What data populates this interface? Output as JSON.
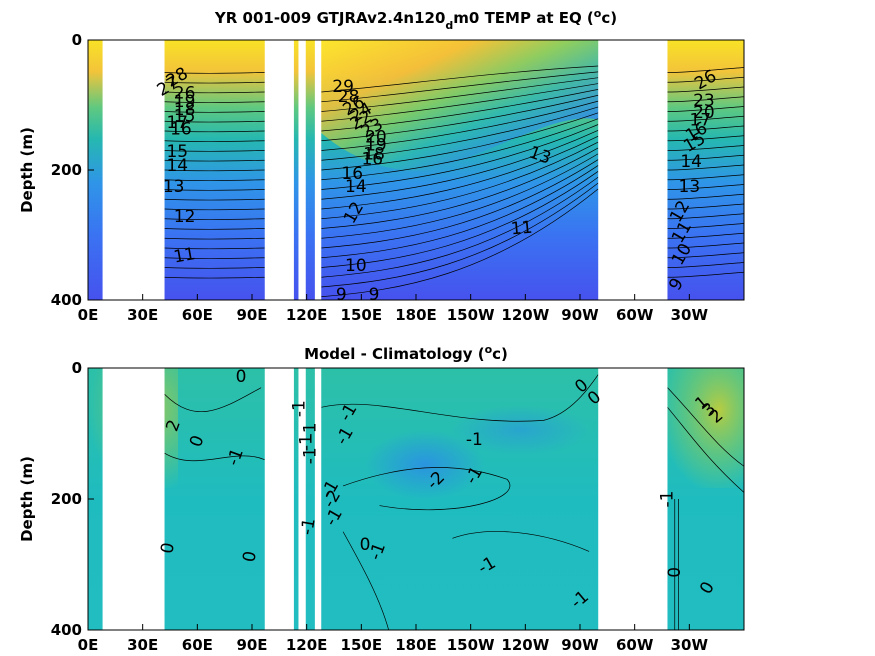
{
  "chart_data": [
    {
      "type": "heatmap",
      "panel": "top",
      "title": "YR 001-009 GTJRAv2.4n120",
      "title_sub": "d",
      "title_tail": "m0 TEMP at EQ (",
      "title_sup": "o",
      "title_end": "c)",
      "ylabel": "Depth (m)",
      "x_ticks": [
        "0E",
        "30E",
        "60E",
        "90E",
        "120E",
        "150E",
        "180E",
        "150W",
        "120W",
        "90W",
        "60W",
        "30W"
      ],
      "x_tick_lon": [
        0,
        30,
        60,
        90,
        120,
        150,
        180,
        210,
        240,
        270,
        300,
        330
      ],
      "y_ticks": [
        "0",
        "200",
        "400"
      ],
      "y_tick_val": [
        0,
        200,
        400
      ],
      "xlim_lon": [
        0,
        360
      ],
      "ylim_depth": [
        0,
        400
      ],
      "land_masks_lon": [
        [
          8,
          42
        ],
        [
          97,
          113
        ],
        [
          115.5,
          119.5
        ],
        [
          124.5,
          128
        ],
        [
          280,
          318
        ]
      ],
      "contour_labels": [
        {
          "text": "28",
          "lon": 49,
          "depth": 58,
          "rot": -30
        },
        {
          "text": "27",
          "lon": 44,
          "depth": 72,
          "rot": -30
        },
        {
          "text": "26",
          "lon": 53,
          "depth": 82,
          "rot": 0
        },
        {
          "text": "19",
          "lon": 53,
          "depth": 95,
          "rot": 0
        },
        {
          "text": "18",
          "lon": 53,
          "depth": 108,
          "rot": 0
        },
        {
          "text": "15",
          "lon": 53,
          "depth": 118,
          "rot": 0
        },
        {
          "text": "17",
          "lon": 49,
          "depth": 128,
          "rot": 0
        },
        {
          "text": "16",
          "lon": 51,
          "depth": 138,
          "rot": 0
        },
        {
          "text": "15",
          "lon": 49,
          "depth": 172,
          "rot": 0
        },
        {
          "text": "14",
          "lon": 49,
          "depth": 194,
          "rot": 0
        },
        {
          "text": "13",
          "lon": 47,
          "depth": 226,
          "rot": 0
        },
        {
          "text": "12",
          "lon": 53,
          "depth": 272,
          "rot": 0
        },
        {
          "text": "11",
          "lon": 53,
          "depth": 332,
          "rot": -10
        },
        {
          "text": "29",
          "lon": 140,
          "depth": 72,
          "rot": 0
        },
        {
          "text": "28",
          "lon": 143,
          "depth": 88,
          "rot": 0
        },
        {
          "text": "26",
          "lon": 146,
          "depth": 102,
          "rot": -30
        },
        {
          "text": "24",
          "lon": 150,
          "depth": 112,
          "rot": -30
        },
        {
          "text": "22",
          "lon": 150,
          "depth": 124,
          "rot": -30
        },
        {
          "text": "23",
          "lon": 156,
          "depth": 136,
          "rot": -30
        },
        {
          "text": "20",
          "lon": 158,
          "depth": 150,
          "rot": 0
        },
        {
          "text": "19",
          "lon": 158,
          "depth": 162,
          "rot": 0
        },
        {
          "text": "18",
          "lon": 157,
          "depth": 176,
          "rot": 0
        },
        {
          "text": "16",
          "lon": 156,
          "depth": 184,
          "rot": 0
        },
        {
          "text": "16",
          "lon": 145,
          "depth": 206,
          "rot": 0
        },
        {
          "text": "14",
          "lon": 147,
          "depth": 226,
          "rot": 0
        },
        {
          "text": "12",
          "lon": 146,
          "depth": 266,
          "rot": -60
        },
        {
          "text": "13",
          "lon": 248,
          "depth": 178,
          "rot": 20
        },
        {
          "text": "11",
          "lon": 238,
          "depth": 290,
          "rot": -5
        },
        {
          "text": "10",
          "lon": 147,
          "depth": 348,
          "rot": 0
        },
        {
          "text": "9",
          "lon": 139,
          "depth": 392,
          "rot": 0
        },
        {
          "text": "9",
          "lon": 157,
          "depth": 392,
          "rot": 0
        },
        {
          "text": "26",
          "lon": 339,
          "depth": 62,
          "rot": -30
        },
        {
          "text": "23",
          "lon": 338,
          "depth": 94,
          "rot": 0
        },
        {
          "text": "20",
          "lon": 338,
          "depth": 112,
          "rot": 0
        },
        {
          "text": "17",
          "lon": 336,
          "depth": 124,
          "rot": 0
        },
        {
          "text": "16",
          "lon": 334,
          "depth": 142,
          "rot": -30
        },
        {
          "text": "15",
          "lon": 333,
          "depth": 158,
          "rot": -30
        },
        {
          "text": "14",
          "lon": 331,
          "depth": 188,
          "rot": 0
        },
        {
          "text": "13",
          "lon": 330,
          "depth": 226,
          "rot": 0
        },
        {
          "text": "12",
          "lon": 325,
          "depth": 264,
          "rot": -60
        },
        {
          "text": "11",
          "lon": 326,
          "depth": 296,
          "rot": -60
        },
        {
          "text": "10",
          "lon": 326,
          "depth": 330,
          "rot": -60
        },
        {
          "text": "9",
          "lon": 323,
          "depth": 376,
          "rot": -60
        }
      ]
    },
    {
      "type": "heatmap",
      "panel": "bottom",
      "title": "Model - Climatology (",
      "title_sup": "o",
      "title_end": "c)",
      "ylabel": "Depth (m)",
      "x_ticks": [
        "0E",
        "30E",
        "60E",
        "90E",
        "120E",
        "150E",
        "180E",
        "150W",
        "120W",
        "90W",
        "60W",
        "30W"
      ],
      "x_tick_lon": [
        0,
        30,
        60,
        90,
        120,
        150,
        180,
        210,
        240,
        270,
        300,
        330
      ],
      "y_ticks": [
        "0",
        "200",
        "400"
      ],
      "y_tick_val": [
        0,
        200,
        400
      ],
      "xlim_lon": [
        0,
        360
      ],
      "ylim_depth": [
        0,
        400
      ],
      "land_masks_lon": [
        [
          8,
          42
        ],
        [
          97,
          113
        ],
        [
          115.5,
          119.5
        ],
        [
          124.5,
          128
        ],
        [
          280,
          318
        ]
      ],
      "contour_labels": [
        {
          "text": "0",
          "lon": 84,
          "depth": 14,
          "rot": 0
        },
        {
          "text": "2",
          "lon": 47,
          "depth": 88,
          "rot": -70
        },
        {
          "text": "0",
          "lon": 60,
          "depth": 112,
          "rot": -70
        },
        {
          "text": "-1",
          "lon": 81,
          "depth": 136,
          "rot": -70
        },
        {
          "text": "0",
          "lon": 44,
          "depth": 275,
          "rot": -80
        },
        {
          "text": "0",
          "lon": 89,
          "depth": 288,
          "rot": -80
        },
        {
          "text": "-1",
          "lon": 116,
          "depth": 62,
          "rot": -90
        },
        {
          "text": "-1",
          "lon": 120,
          "depth": 114,
          "rot": -90
        },
        {
          "text": "-1",
          "lon": 122,
          "depth": 96,
          "rot": -90
        },
        {
          "text": "-1",
          "lon": 122,
          "depth": 134,
          "rot": -90
        },
        {
          "text": "-1",
          "lon": 121,
          "depth": 242,
          "rot": -80
        },
        {
          "text": "-1",
          "lon": 133,
          "depth": 185,
          "rot": -60
        },
        {
          "text": "-2",
          "lon": 134,
          "depth": 200,
          "rot": -60
        },
        {
          "text": "-1",
          "lon": 135,
          "depth": 228,
          "rot": -60
        },
        {
          "text": "-1",
          "lon": 143,
          "depth": 68,
          "rot": -60
        },
        {
          "text": "-1",
          "lon": 141,
          "depth": 104,
          "rot": -60
        },
        {
          "text": "0",
          "lon": 152,
          "depth": 270,
          "rot": 0
        },
        {
          "text": "-1",
          "lon": 159,
          "depth": 280,
          "rot": -70
        },
        {
          "text": "-1",
          "lon": 212,
          "depth": 110,
          "rot": 0
        },
        {
          "text": "-2",
          "lon": 191,
          "depth": 172,
          "rot": -45
        },
        {
          "text": "-1",
          "lon": 212,
          "depth": 164,
          "rot": -60
        },
        {
          "text": "-1",
          "lon": 219,
          "depth": 302,
          "rot": -30
        },
        {
          "text": "-1",
          "lon": 270,
          "depth": 354,
          "rot": -40
        },
        {
          "text": "0",
          "lon": 271,
          "depth": 28,
          "rot": -40
        },
        {
          "text": "0",
          "lon": 278,
          "depth": 46,
          "rot": -40
        },
        {
          "text": "-1",
          "lon": 318,
          "depth": 200,
          "rot": -90
        },
        {
          "text": "1",
          "lon": 337,
          "depth": 54,
          "rot": -40
        },
        {
          "text": "3",
          "lon": 341,
          "depth": 64,
          "rot": -40
        },
        {
          "text": "2",
          "lon": 345,
          "depth": 74,
          "rot": -40
        },
        {
          "text": "0",
          "lon": 322,
          "depth": 312,
          "rot": -90
        },
        {
          "text": "0",
          "lon": 340,
          "depth": 336,
          "rot": -60
        }
      ]
    }
  ]
}
